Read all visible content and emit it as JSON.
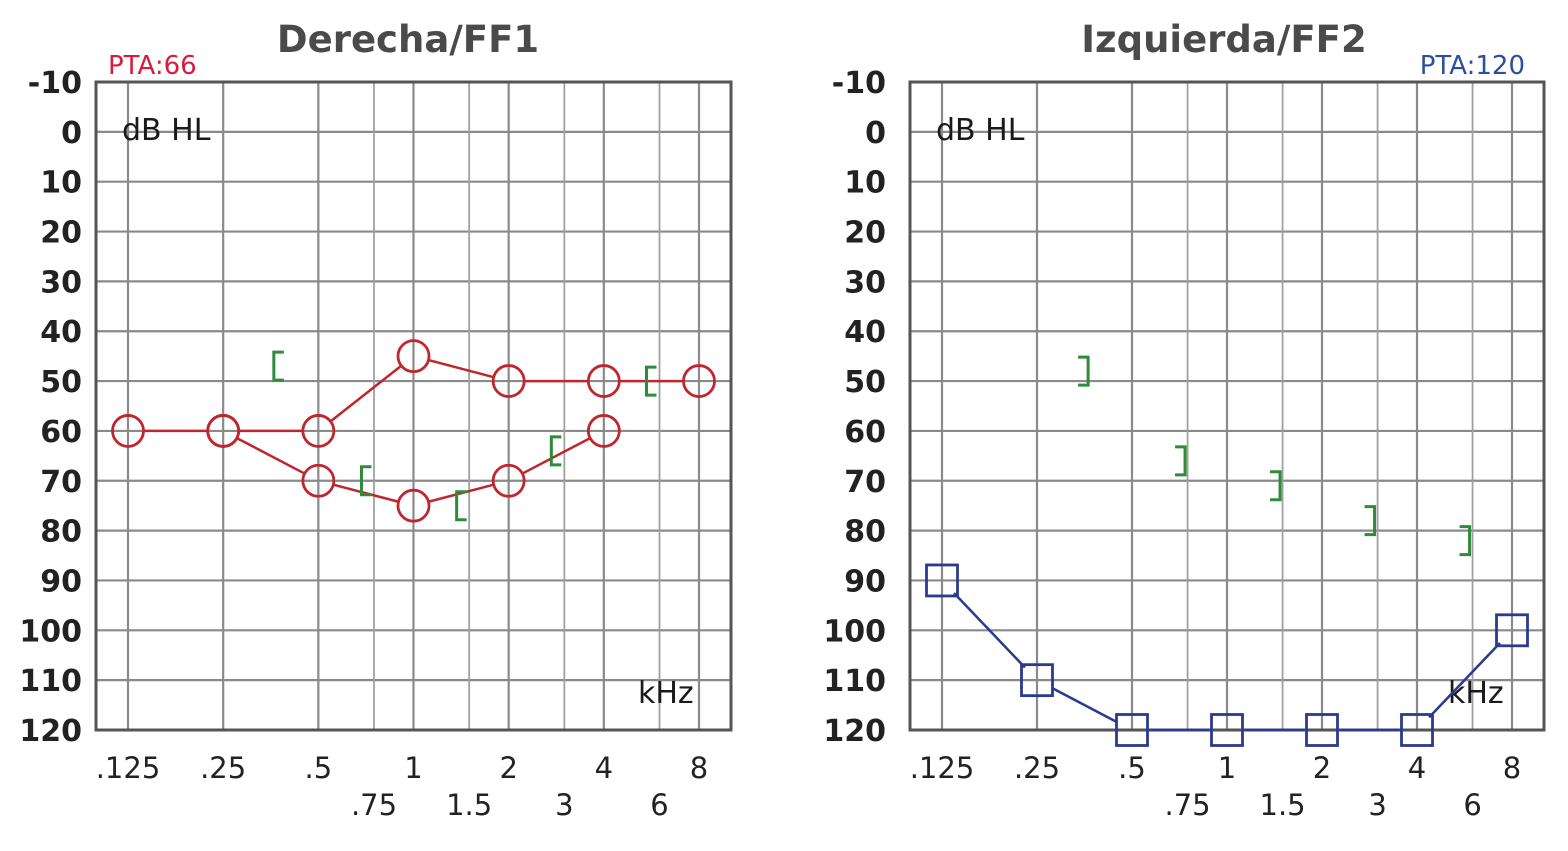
{
  "chart_data": [
    {
      "type": "scatter",
      "title": "Derecha/FF1",
      "pta": "PTA:66",
      "ylabel": "dB HL",
      "xlabel": "kHz",
      "y_axis": {
        "range": [
          -10,
          120
        ],
        "inverted": true,
        "ticks": [
          "-10",
          "0",
          "10",
          "20",
          "30",
          "40",
          "50",
          "60",
          "70",
          "80",
          "90",
          "100",
          "110",
          "120"
        ]
      },
      "x_axis": {
        "scale": "log",
        "octave_ticks": [
          {
            "freq": 0.125,
            "label": ".125"
          },
          {
            "freq": 0.25,
            "label": ".25"
          },
          {
            "freq": 0.5,
            "label": ".5"
          },
          {
            "freq": 1,
            "label": "1"
          },
          {
            "freq": 2,
            "label": "2"
          },
          {
            "freq": 4,
            "label": "4"
          },
          {
            "freq": 8,
            "label": "8"
          }
        ],
        "interoctave_ticks": [
          {
            "freq": 0.75,
            "label": ".75"
          },
          {
            "freq": 1.5,
            "label": "1.5"
          },
          {
            "freq": 3,
            "label": "3"
          },
          {
            "freq": 6,
            "label": "6"
          }
        ]
      },
      "grid": true,
      "colors": {
        "air": "#c0262e",
        "bone": "#2e8b3a",
        "pta": "#d81b3c"
      },
      "series": [
        {
          "symbol": "circle",
          "connected": true,
          "points": [
            {
              "x": 0.125,
              "y": 60
            },
            {
              "x": 0.25,
              "y": 60
            },
            {
              "x": 0.5,
              "y": 60
            },
            {
              "x": 1,
              "y": 45
            },
            {
              "x": 2,
              "y": 50
            },
            {
              "x": 4,
              "y": 50
            },
            {
              "x": 8,
              "y": 50
            }
          ]
        },
        {
          "symbol": "circle",
          "connected": true,
          "points": [
            {
              "x": 0.25,
              "y": 60
            },
            {
              "x": 0.5,
              "y": 70
            },
            {
              "x": 1,
              "y": 75
            },
            {
              "x": 2,
              "y": 70
            },
            {
              "x": 4,
              "y": 60
            }
          ]
        },
        {
          "symbol": "bracket-left",
          "connected": false,
          "points": [
            {
              "x": 0.375,
              "y": 47
            },
            {
              "x": 0.71,
              "y": 70
            },
            {
              "x": 1.42,
              "y": 75
            },
            {
              "x": 2.83,
              "y": 64
            },
            {
              "x": 5.66,
              "y": 50
            }
          ]
        }
      ]
    },
    {
      "type": "scatter",
      "title": "Izquierda/FF2",
      "pta": "PTA:120",
      "ylabel": "dB HL",
      "xlabel": "kHz",
      "y_axis": {
        "range": [
          -10,
          120
        ],
        "inverted": true,
        "ticks": [
          "-10",
          "0",
          "10",
          "20",
          "30",
          "40",
          "50",
          "60",
          "70",
          "80",
          "90",
          "100",
          "110",
          "120"
        ]
      },
      "x_axis": {
        "scale": "log",
        "octave_ticks": [
          {
            "freq": 0.125,
            "label": ".125"
          },
          {
            "freq": 0.25,
            "label": ".25"
          },
          {
            "freq": 0.5,
            "label": ".5"
          },
          {
            "freq": 1,
            "label": "1"
          },
          {
            "freq": 2,
            "label": "2"
          },
          {
            "freq": 4,
            "label": "4"
          },
          {
            "freq": 8,
            "label": "8"
          }
        ],
        "interoctave_ticks": [
          {
            "freq": 0.75,
            "label": ".75"
          },
          {
            "freq": 1.5,
            "label": "1.5"
          },
          {
            "freq": 3,
            "label": "3"
          },
          {
            "freq": 6,
            "label": "6"
          }
        ]
      },
      "grid": true,
      "colors": {
        "air": "#2b3a8f",
        "bone": "#2e8b3a",
        "pta": "#2b4fa0"
      },
      "series": [
        {
          "symbol": "square",
          "connected": true,
          "points": [
            {
              "x": 0.125,
              "y": 90
            },
            {
              "x": 0.25,
              "y": 110
            },
            {
              "x": 0.5,
              "y": 120
            },
            {
              "x": 1,
              "y": 120
            },
            {
              "x": 2,
              "y": 120
            },
            {
              "x": 4,
              "y": 120
            },
            {
              "x": 8,
              "y": 100
            }
          ]
        },
        {
          "symbol": "bracket-right",
          "connected": false,
          "points": [
            {
              "x": 0.35,
              "y": 48
            },
            {
              "x": 0.71,
              "y": 66
            },
            {
              "x": 1.42,
              "y": 71
            },
            {
              "x": 2.83,
              "y": 78
            },
            {
              "x": 5.66,
              "y": 82
            }
          ]
        }
      ]
    }
  ]
}
